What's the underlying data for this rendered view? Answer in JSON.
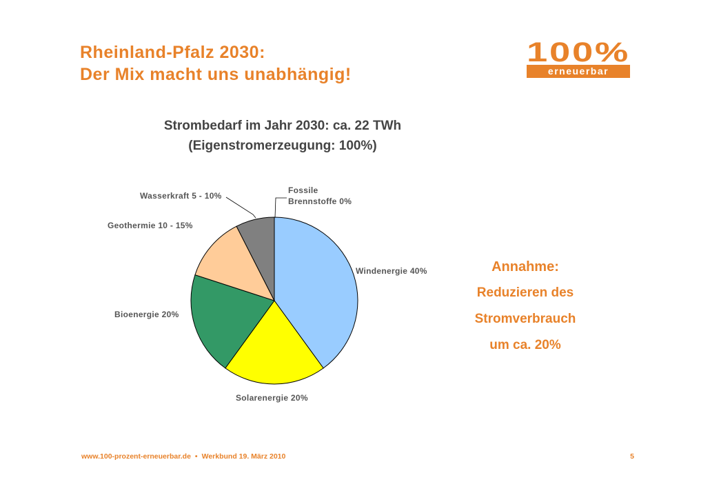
{
  "slide": {
    "title_line1": "Rheinland-Pfalz 2030:",
    "title_line2": "Der Mix macht uns unabhängig!",
    "page_number": "5"
  },
  "logo": {
    "digits": "100%",
    "word": "erneuerbar"
  },
  "note": {
    "line1": "Annahme:",
    "line2": "Reduzieren des",
    "line3": "Stromverbrauch",
    "line4": "um ca. 20%"
  },
  "footer": {
    "url": "www.100-prozent-erneuerbar.de",
    "separator": "•",
    "event": "Werkbund 19. März 2010"
  },
  "colors": {
    "accent": "#E8822A",
    "text_gray": "#444444"
  },
  "chart_data": {
    "type": "pie",
    "title": "Strombedarf im Jahr 2030: ca. 22 TWh",
    "subtitle": "(Eigenstromerzeugung: 100%)",
    "categories": [
      "Windenergie",
      "Solarenergie",
      "Bioenergie",
      "Geothermie",
      "Wasserkraft",
      "Fossile Brennstoffe"
    ],
    "values": [
      40,
      20,
      20,
      12.5,
      7.5,
      0
    ],
    "labels": [
      "Windenergie 40%",
      "Solarenergie 20%",
      "Bioenergie 20%",
      "Geothermie 10 - 15%",
      "Wasserkraft 5 - 10%",
      "Fossile Brennstoffe 0%"
    ],
    "label_lines": [
      [
        "Windenergie 40%"
      ],
      [
        "Solarenergie 20%"
      ],
      [
        "Bioenergie 20%"
      ],
      [
        "Geothermie 10 - 15%"
      ],
      [
        "Wasserkraft 5 - 10%"
      ],
      [
        "Fossile",
        "Brennstoffe 0%"
      ]
    ],
    "colors": [
      "#99CCFF",
      "#FFFF00",
      "#339966",
      "#FFCC99",
      "#808080",
      "#FFFFFF"
    ],
    "start_angle": "12 o'clock",
    "direction": "clockwise"
  }
}
